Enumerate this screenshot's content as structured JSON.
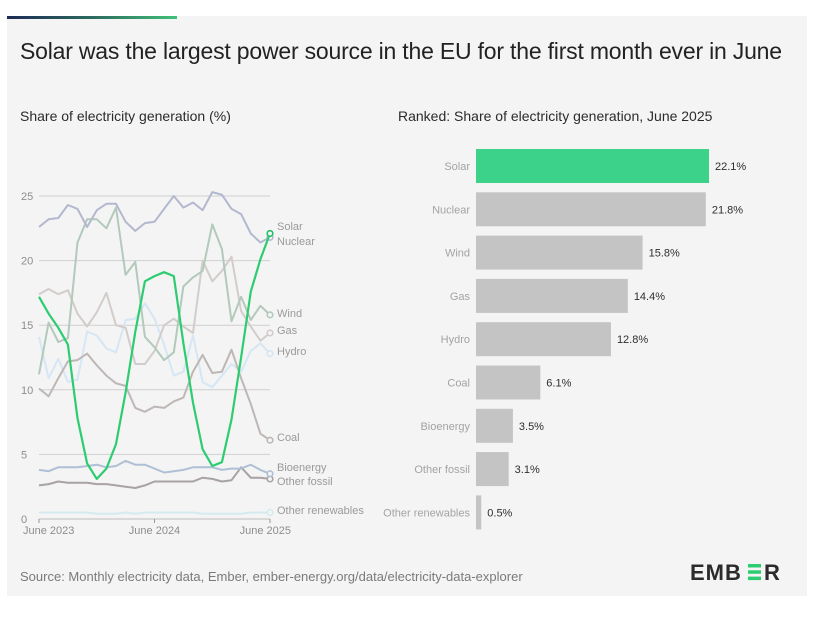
{
  "header": {
    "title": "Solar was the largest power source in the EU for the first month ever in June"
  },
  "colors": {
    "solar": "#2ecc71",
    "solar_bar": "#3dd28a",
    "nuclear": "#b4b8cf",
    "wind": "#b2c9bb",
    "gas": "#d2cccb",
    "hydro": "#d5e6f4",
    "coal": "#bdb7b5",
    "bioenergy": "#afc0d6",
    "other_fossil": "#a8a2a2",
    "other_renewables": "#d3ebee",
    "bar_gray": "#c4c4c4",
    "background": "#f4f4f4"
  },
  "chart_data": [
    {
      "type": "line",
      "title": "Share of electricity generation (%)",
      "xlabel": "",
      "ylabel": "",
      "ylim": [
        0,
        25
      ],
      "yticks": [
        0,
        5,
        10,
        15,
        20,
        25
      ],
      "ytick_labels": [
        "0",
        "5",
        "10",
        "15",
        "20",
        "25"
      ],
      "x_range": [
        "2023-06",
        "2025-06"
      ],
      "xticks": [
        "June 2023",
        "June 2024",
        "June 2025"
      ],
      "grid": true,
      "legend": "end-of-line labels (right)",
      "x": [
        "2023-06",
        "2023-07",
        "2023-08",
        "2023-09",
        "2023-10",
        "2023-11",
        "2023-12",
        "2024-01",
        "2024-02",
        "2024-03",
        "2024-04",
        "2024-05",
        "2024-06",
        "2024-07",
        "2024-08",
        "2024-09",
        "2024-10",
        "2024-11",
        "2024-12",
        "2025-01",
        "2025-02",
        "2025-03",
        "2025-04",
        "2025-05",
        "2025-06"
      ],
      "series": [
        {
          "name": "Nuclear",
          "key": "nuclear",
          "values": [
            22.6,
            23.2,
            23.3,
            24.3,
            24.0,
            22.6,
            23.9,
            24.4,
            24.4,
            23.0,
            22.3,
            22.9,
            23.0,
            24.0,
            25.0,
            24.1,
            24.5,
            23.9,
            25.3,
            25.1,
            24.0,
            23.6,
            22.1,
            21.4,
            21.8
          ]
        },
        {
          "name": "Solar",
          "key": "solar",
          "values": [
            17.2,
            15.9,
            14.8,
            13.5,
            7.8,
            4.3,
            3.1,
            3.9,
            5.8,
            9.8,
            14.5,
            18.4,
            18.8,
            19.1,
            18.8,
            13.6,
            9.0,
            5.4,
            4.1,
            4.4,
            7.7,
            12.5,
            17.6,
            20.1,
            22.1
          ]
        },
        {
          "name": "Wind",
          "key": "wind",
          "values": [
            11.2,
            15.2,
            13.7,
            14.0,
            21.4,
            23.2,
            23.2,
            22.5,
            24.1,
            18.9,
            19.9,
            14.1,
            13.3,
            12.3,
            12.9,
            18.0,
            18.7,
            19.2,
            22.8,
            20.9,
            15.3,
            17.2,
            15.4,
            16.5,
            15.8
          ]
        },
        {
          "name": "Gas",
          "key": "gas",
          "values": [
            17.4,
            17.8,
            17.4,
            17.7,
            15.9,
            14.9,
            16.0,
            17.5,
            15.0,
            14.8,
            12.0,
            12.0,
            13.0,
            15.0,
            15.5,
            14.9,
            14.4,
            20.0,
            18.4,
            19.2,
            20.3,
            16.1,
            14.9,
            13.8,
            14.4
          ]
        },
        {
          "name": "Hydro",
          "key": "hydro",
          "values": [
            14.1,
            10.9,
            12.4,
            10.6,
            10.8,
            14.5,
            14.2,
            13.2,
            12.9,
            15.4,
            15.5,
            16.7,
            15.5,
            13.5,
            11.1,
            11.4,
            14.2,
            10.6,
            10.2,
            11.1,
            12.0,
            11.4,
            13.0,
            13.6,
            12.8
          ]
        },
        {
          "name": "Coal",
          "key": "coal",
          "values": [
            10.1,
            9.5,
            10.9,
            12.2,
            12.3,
            12.8,
            11.9,
            11.1,
            10.5,
            10.3,
            8.6,
            8.3,
            8.7,
            8.6,
            9.1,
            9.4,
            11.4,
            12.7,
            11.3,
            11.4,
            13.1,
            10.9,
            8.9,
            6.6,
            6.1
          ]
        },
        {
          "name": "Bioenergy",
          "key": "bioenergy",
          "values": [
            3.8,
            3.7,
            4.0,
            4.0,
            4.0,
            4.1,
            4.2,
            4.0,
            4.1,
            4.5,
            4.2,
            4.2,
            3.9,
            3.6,
            3.7,
            3.8,
            4.0,
            4.0,
            4.0,
            3.8,
            3.9,
            3.9,
            4.2,
            3.8,
            3.5
          ]
        },
        {
          "name": "Other fossil",
          "key": "other_fossil",
          "values": [
            2.6,
            2.7,
            2.9,
            2.8,
            2.8,
            2.8,
            2.7,
            2.7,
            2.6,
            2.5,
            2.4,
            2.6,
            2.9,
            2.9,
            2.9,
            2.9,
            2.9,
            3.2,
            3.1,
            2.9,
            3.0,
            4.0,
            3.2,
            3.2,
            3.1
          ]
        },
        {
          "name": "Other renewables",
          "key": "other_renewables",
          "values": [
            0.5,
            0.5,
            0.5,
            0.5,
            0.5,
            0.5,
            0.4,
            0.4,
            0.4,
            0.5,
            0.4,
            0.5,
            0.5,
            0.5,
            0.5,
            0.5,
            0.5,
            0.4,
            0.4,
            0.4,
            0.4,
            0.4,
            0.5,
            0.5,
            0.5
          ]
        }
      ]
    },
    {
      "type": "bar",
      "orientation": "horizontal",
      "title": "Ranked: Share of electricity generation, June 2025",
      "categories": [
        "Solar",
        "Nuclear",
        "Wind",
        "Gas",
        "Hydro",
        "Coal",
        "Bioenergy",
        "Other fossil",
        "Other renewables"
      ],
      "values": [
        22.1,
        21.8,
        15.8,
        14.4,
        12.8,
        6.1,
        3.5,
        3.1,
        0.5
      ],
      "value_labels": [
        "22.1%",
        "21.8%",
        "15.8%",
        "14.4%",
        "12.8%",
        "6.1%",
        "3.5%",
        "3.1%",
        "0.5%"
      ],
      "highlight": "Solar",
      "xlim": [
        0,
        22.1
      ],
      "grid": false
    }
  ],
  "footer": {
    "source": "Source: Monthly electricity data, Ember, ember-energy.org/data/electricity-data-explorer",
    "logo_text_left": "EMB",
    "logo_text_right": "R"
  }
}
